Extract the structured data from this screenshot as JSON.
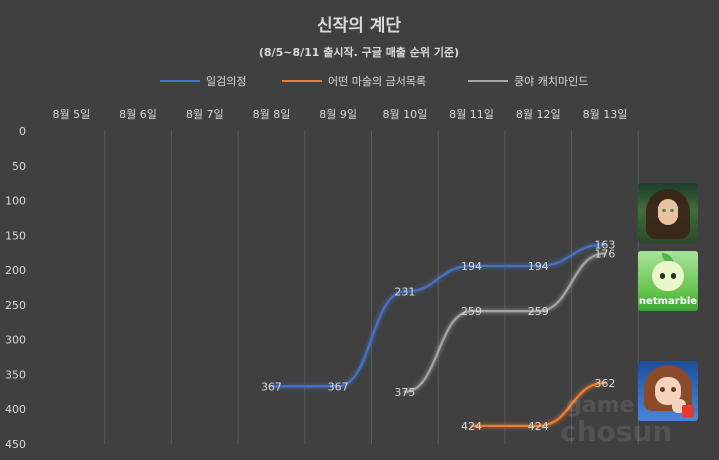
{
  "chart_data": {
    "type": "line",
    "title": "신작의 계단",
    "subtitle": "(8/5~8/11 출시작. 구글 매출 순위 기준)",
    "categories": [
      "8월 5일",
      "8월 6일",
      "8월 7일",
      "8월 8일",
      "8월 9일",
      "8월 10일",
      "8월 11일",
      "8월 12일",
      "8월 13일"
    ],
    "yticks": [
      "0",
      "50",
      "100",
      "150",
      "200",
      "250",
      "300",
      "350",
      "400",
      "450"
    ],
    "ylim": [
      0,
      450
    ],
    "y_reversed": true,
    "grid": "vertical",
    "legend_position": "top",
    "series": [
      {
        "name": "일검의정",
        "color": "#4472c4",
        "values": [
          null,
          null,
          null,
          367,
          367,
          231,
          194,
          194,
          163
        ],
        "labels": [
          "",
          "",
          "",
          "367",
          "367",
          "231",
          "194",
          "194",
          "163"
        ]
      },
      {
        "name": "어떤 마술의 금서목록",
        "color": "#ed7d31",
        "values": [
          null,
          null,
          null,
          null,
          null,
          null,
          424,
          424,
          362
        ],
        "labels": [
          "",
          "",
          "",
          "",
          "",
          "",
          "424",
          "424",
          "362"
        ]
      },
      {
        "name": "쿵야 캐치마인드",
        "color": "#a5a5a5",
        "values": [
          null,
          null,
          null,
          null,
          null,
          375,
          259,
          259,
          176
        ],
        "labels": [
          "",
          "",
          "",
          "",
          "",
          "375",
          "259",
          "259",
          "176"
        ]
      }
    ]
  },
  "thumbnails": [
    {
      "name": "game-icon-warrior-woman"
    },
    {
      "name": "game-icon-netmarble-kungya",
      "text": "netmarble"
    },
    {
      "name": "game-icon-anime-girl"
    }
  ],
  "watermark": {
    "line1": "game",
    "line2": "chosun"
  }
}
